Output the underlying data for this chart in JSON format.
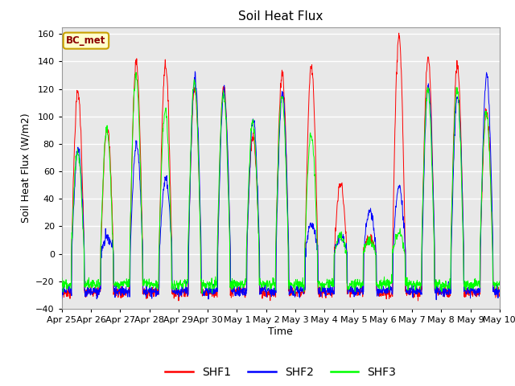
{
  "title": "Soil Heat Flux",
  "ylabel": "Soil Heat Flux (W/m2)",
  "xlabel": "Time",
  "ylim": [
    -40,
    165
  ],
  "yticks": [
    -40,
    -20,
    0,
    20,
    40,
    60,
    80,
    100,
    120,
    140,
    160
  ],
  "plot_bg_color": "#e8e8e8",
  "fig_bg_color": "#ffffff",
  "grid_color": "white",
  "legend_label": "BC_met",
  "series": [
    "SHF1",
    "SHF2",
    "SHF3"
  ],
  "colors": [
    "red",
    "blue",
    "lime"
  ],
  "xtick_labels": [
    "Apr 25",
    "Apr 26",
    "Apr 27",
    "Apr 28",
    "Apr 29",
    "Apr 30",
    "May 1",
    "May 2",
    "May 3",
    "May 4",
    "May 5",
    "May 6",
    "May 7",
    "May 8",
    "May 9",
    "May 10"
  ],
  "n_days": 15,
  "ppd": 96
}
